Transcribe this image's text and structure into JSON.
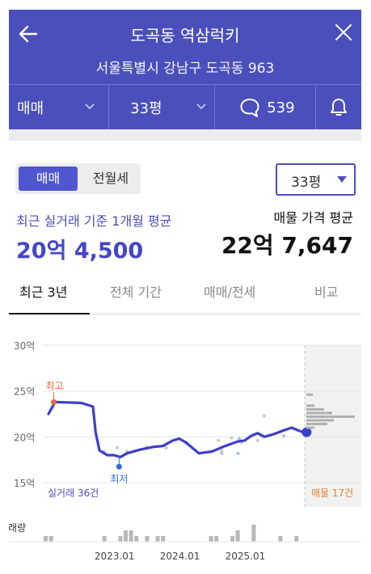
{
  "header": {
    "title": "도곡동 역삼럭키",
    "address": "서울특별시 강남구 도곡동 963",
    "trade_type": "매매",
    "size": "33평",
    "comment_count": "539",
    "bg_color": "#4a4fbc"
  },
  "toggle": {
    "sale": "매매",
    "rent": "전월세"
  },
  "size_select": "33평",
  "recent": {
    "label": "최근 실거래 기준 1개월 평균",
    "value": "20억 4,500"
  },
  "listing": {
    "label": "매물 가격 평균",
    "value": "22억 7,647"
  },
  "tabs": [
    "최근 3년",
    "전체 기간",
    "매매/전세",
    "비교"
  ],
  "chart_data": {
    "type": "line",
    "y_ticks": [
      "30억",
      "25억",
      "20억",
      "15억"
    ],
    "ylim": [
      15,
      30
    ],
    "x_ticks": [
      "2023.01",
      "2024.01",
      "2025.01"
    ],
    "series": [
      {
        "values": [
          [
            2022.0,
            22.5
          ],
          [
            2022.1,
            23.8
          ],
          [
            2022.5,
            23.7
          ],
          [
            2022.68,
            23.3
          ],
          [
            2022.72,
            20.5
          ],
          [
            2022.78,
            18.5
          ],
          [
            2022.9,
            18.0
          ],
          [
            2023.0,
            18.0
          ],
          [
            2023.1,
            17.8
          ],
          [
            2023.2,
            18.2
          ],
          [
            2023.4,
            18.6
          ],
          [
            2023.6,
            18.9
          ],
          [
            2023.75,
            19.0
          ],
          [
            2023.9,
            19.6
          ],
          [
            2024.0,
            19.8
          ],
          [
            2024.1,
            19.4
          ],
          [
            2024.3,
            18.2
          ],
          [
            2024.5,
            18.4
          ],
          [
            2024.7,
            19.0
          ],
          [
            2024.9,
            19.5
          ],
          [
            2025.0,
            19.6
          ],
          [
            2025.1,
            20.1
          ],
          [
            2025.2,
            20.4
          ],
          [
            2025.3,
            20.0
          ],
          [
            2025.45,
            20.3
          ],
          [
            2025.6,
            20.7
          ],
          [
            2025.72,
            21.0
          ],
          [
            2025.82,
            20.7
          ],
          [
            2025.9,
            20.5
          ]
        ]
      }
    ],
    "high": {
      "label": "최고",
      "value": 23.8
    },
    "low": {
      "label": "최저",
      "value": 17.8
    },
    "deals_label": "실거래 36건",
    "listings_label": "매물 17건",
    "volume_label": "거래량",
    "volume": [
      1,
      1,
      0,
      0,
      0,
      0,
      0,
      0,
      0,
      0,
      0,
      1,
      0,
      0,
      1,
      2,
      2,
      1,
      0,
      1,
      0,
      1,
      1,
      0,
      0,
      0,
      0,
      0,
      0,
      0,
      0,
      1,
      1,
      0,
      0,
      1,
      2,
      0,
      0,
      3,
      0,
      0,
      0,
      0,
      1,
      0,
      0,
      1,
      0,
      0,
      0
    ]
  }
}
